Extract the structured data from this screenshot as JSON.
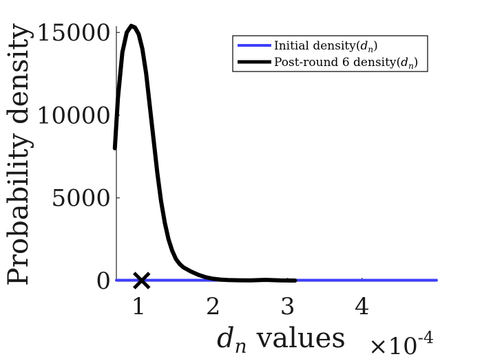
{
  "chart_data": {
    "type": "line",
    "xlabel": "values",
    "xlabel_symbol": "d",
    "xlabel_subscript": "n",
    "ylabel": "Probability density",
    "x_exponent_base": "×10",
    "x_exponent_power": "-4",
    "xlim": [
      0.7,
      5.0
    ],
    "ylim": [
      0,
      15300
    ],
    "xticks": [
      1,
      2,
      3,
      4
    ],
    "yticks": [
      0,
      5000,
      10000,
      15000
    ],
    "grid": false,
    "legend_position": "top-right",
    "series": [
      {
        "name": "Initial density(",
        "name_symbol": "d",
        "name_subscript": "n",
        "name_suffix": ")",
        "color": "#3f3fff",
        "x": [
          0.7,
          5.0
        ],
        "y": [
          20,
          20
        ]
      },
      {
        "name": "Post-round 6 density(",
        "name_symbol": "d",
        "name_subscript": "n",
        "name_suffix": ")",
        "color": "#000000",
        "x": [
          0.68,
          0.72,
          0.78,
          0.84,
          0.9,
          0.95,
          1.0,
          1.05,
          1.1,
          1.15,
          1.2,
          1.25,
          1.3,
          1.35,
          1.4,
          1.45,
          1.5,
          1.55,
          1.6,
          1.7,
          1.8,
          1.9,
          2.0,
          2.1,
          2.2,
          2.35,
          2.5,
          2.7,
          2.9,
          3.1
        ],
        "y": [
          8000,
          11000,
          13800,
          15000,
          15400,
          15300,
          14900,
          14000,
          12500,
          10500,
          8500,
          6500,
          4800,
          3500,
          2500,
          1800,
          1300,
          1000,
          800,
          550,
          350,
          200,
          110,
          60,
          30,
          15,
          8,
          40,
          10,
          0
        ]
      }
    ],
    "markers": [
      {
        "x": 1.04,
        "y": 0,
        "symbol": "x",
        "color": "#000000"
      }
    ]
  }
}
